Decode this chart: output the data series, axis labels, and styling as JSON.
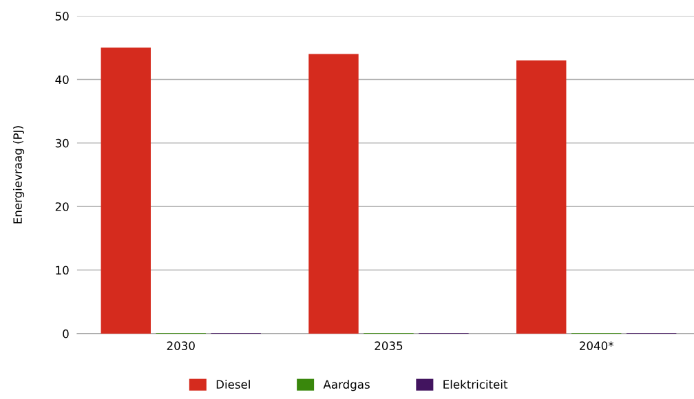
{
  "chart_data": {
    "type": "bar",
    "categories": [
      "2030",
      "2035",
      "2040*"
    ],
    "series": [
      {
        "name": "Diesel",
        "color": "#d52b1e",
        "values": [
          45,
          44,
          43
        ]
      },
      {
        "name": "Aardgas",
        "color": "#39870c",
        "values": [
          0.1,
          0.1,
          0.1
        ]
      },
      {
        "name": "Elektriciteit",
        "color": "#42145f",
        "values": [
          0.1,
          0.1,
          0.1
        ]
      }
    ],
    "ylabel": "Energievraag (PJ)",
    "ylim": [
      0,
      50
    ],
    "yticks": [
      0,
      10,
      20,
      30,
      40,
      50
    ],
    "grid": "y",
    "legend": "bottom"
  }
}
